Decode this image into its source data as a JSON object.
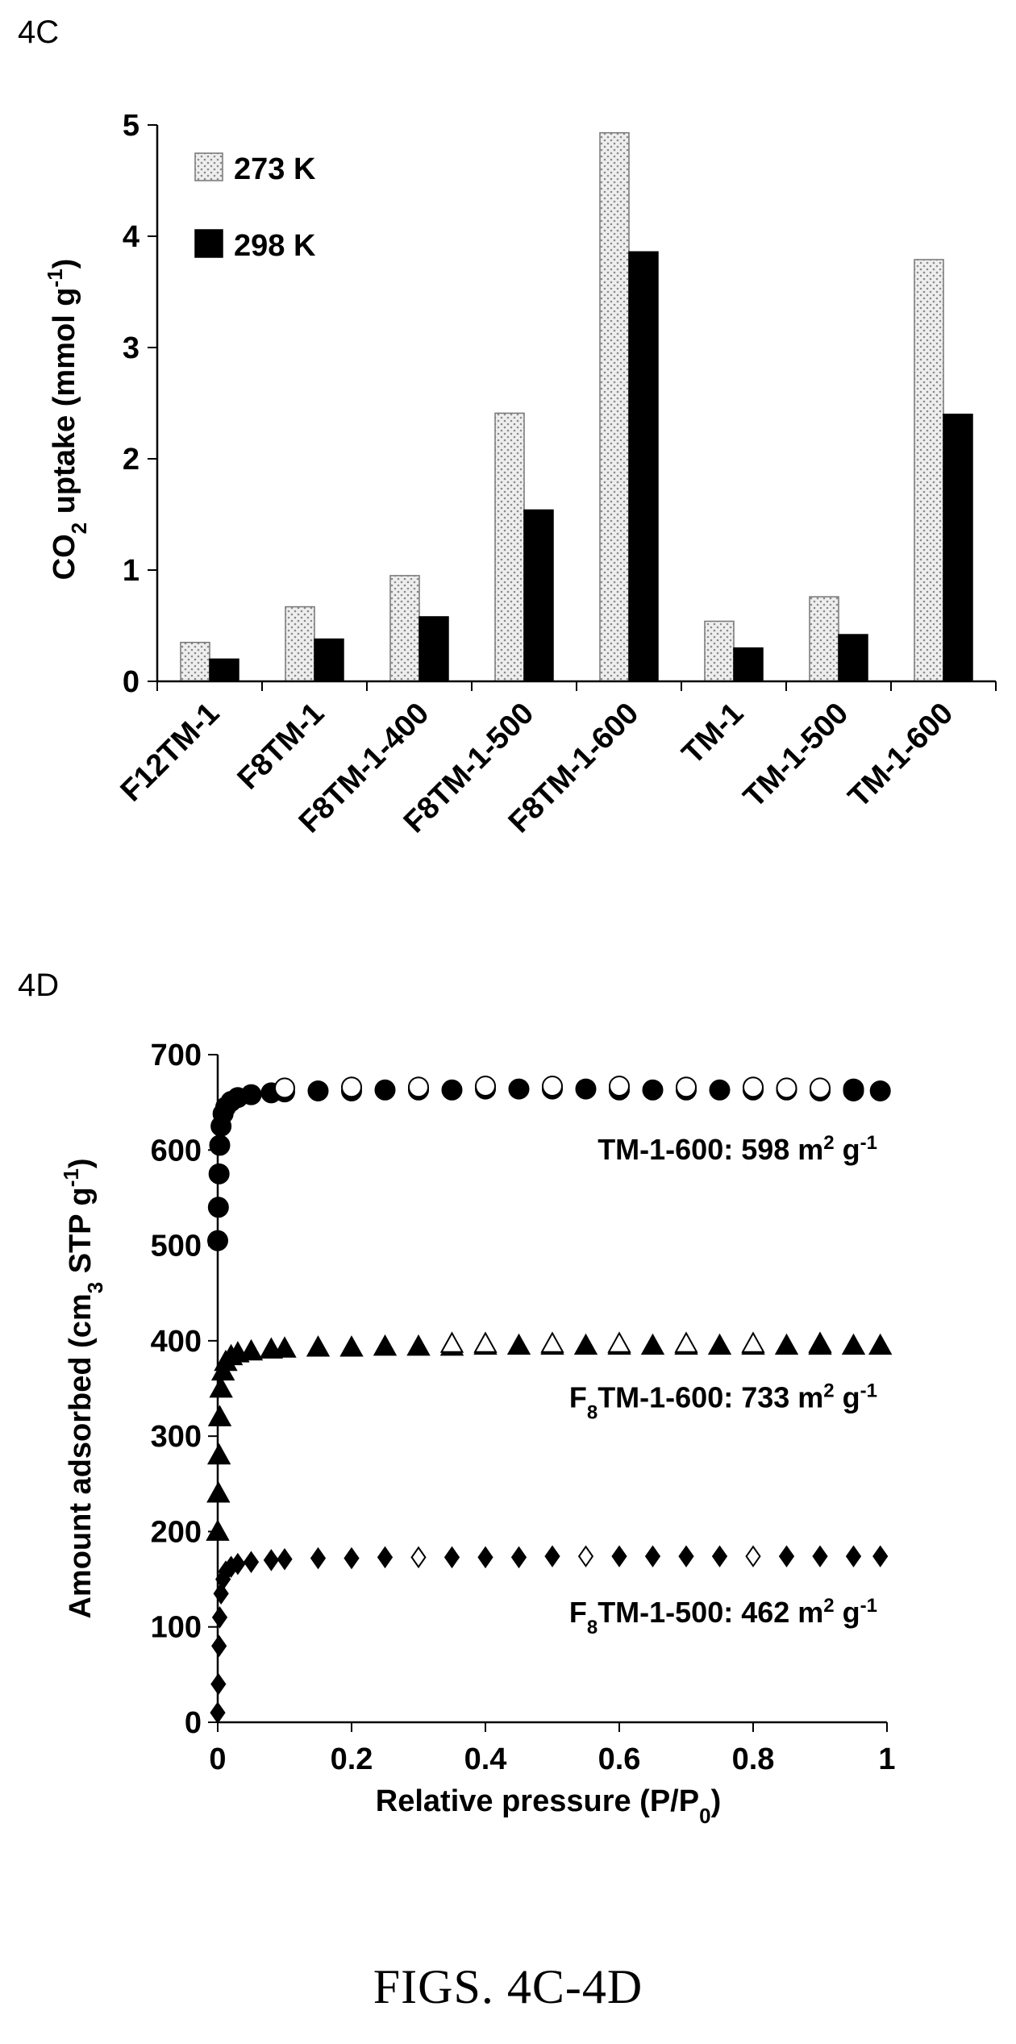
{
  "caption": "FIGS. 4C-4D",
  "chart_data": [
    {
      "panel": "4C",
      "type": "bar",
      "ylabel_main": "CO",
      "ylabel_sub": "2",
      "ylabel_rest": " uptake (mmol g",
      "ylabel_sup": "-1",
      "ylabel_end": ")",
      "ylim": [
        0,
        5
      ],
      "yticks": [
        "0",
        "1",
        "2",
        "3",
        "4",
        "5"
      ],
      "categories": [
        "F12TM-1",
        "F8TM-1",
        "F8TM-1-400",
        "F8TM-1-500",
        "F8TM-1-600",
        "TM-1",
        "TM-1-500",
        "TM-1-600"
      ],
      "series": [
        {
          "name": "273 K",
          "values": [
            0.35,
            0.67,
            0.95,
            2.41,
            4.93,
            0.54,
            0.76,
            3.79
          ],
          "color": "#e6e6e6",
          "pattern": "dotted"
        },
        {
          "name": "298 K",
          "values": [
            0.2,
            0.38,
            0.58,
            1.54,
            3.86,
            0.3,
            0.42,
            2.4
          ],
          "color": "#000000"
        }
      ],
      "legend": "top-left"
    },
    {
      "panel": "4D",
      "type": "scatter",
      "xlabel_main": "Relative pressure (P/P",
      "xlabel_sub": "0",
      "xlabel_end": ")",
      "ylabel_main": "Amount adsorbed (cm",
      "ylabel_sub": "3",
      "ylabel_rest": " STP g",
      "ylabel_sup": "-1",
      "ylabel_end": ")",
      "xlim": [
        0,
        1
      ],
      "ylim": [
        0,
        700
      ],
      "xticks": [
        "0",
        "0.2",
        "0.4",
        "0.6",
        "0.8",
        "1"
      ],
      "yticks": [
        "0",
        "100",
        "200",
        "300",
        "400",
        "500",
        "600",
        "700"
      ],
      "series": [
        {
          "marker": "circle",
          "color": "#000000",
          "annotation": {
            "pre": "TM-1-600: 598 m",
            "sup": "2",
            "mid": " g",
            "sup2": "-1"
          },
          "points": [
            [
              0.0,
              505
            ],
            [
              0.001,
              540
            ],
            [
              0.002,
              575
            ],
            [
              0.003,
              605
            ],
            [
              0.005,
              625
            ],
            [
              0.008,
              638
            ],
            [
              0.012,
              645
            ],
            [
              0.02,
              651
            ],
            [
              0.03,
              655
            ],
            [
              0.05,
              658
            ],
            [
              0.08,
              660
            ],
            [
              0.1,
              661
            ],
            [
              0.15,
              662
            ],
            [
              0.2,
              662
            ],
            [
              0.25,
              663
            ],
            [
              0.3,
              663
            ],
            [
              0.35,
              663
            ],
            [
              0.4,
              664
            ],
            [
              0.45,
              664
            ],
            [
              0.5,
              664
            ],
            [
              0.55,
              664
            ],
            [
              0.6,
              663
            ],
            [
              0.65,
              663
            ],
            [
              0.7,
              663
            ],
            [
              0.75,
              663
            ],
            [
              0.8,
              663
            ],
            [
              0.85,
              663
            ],
            [
              0.9,
              662
            ],
            [
              0.95,
              662
            ],
            [
              0.99,
              662
            ],
            [
              0.95,
              664
            ],
            [
              0.9,
              665
            ],
            [
              0.85,
              665
            ],
            [
              0.8,
              666
            ],
            [
              0.7,
              666
            ],
            [
              0.6,
              667
            ],
            [
              0.5,
              667
            ],
            [
              0.4,
              667
            ],
            [
              0.3,
              666
            ],
            [
              0.2,
              666
            ],
            [
              0.1,
              665
            ]
          ]
        },
        {
          "marker": "triangle",
          "color": "#000000",
          "annotation": {
            "pre": "F",
            "sub": "8",
            "mid": "TM-1-600: 733 m",
            "sup": "2",
            "mid2": " g",
            "sup2": "-1"
          },
          "points": [
            [
              0.0,
              200
            ],
            [
              0.001,
              240
            ],
            [
              0.002,
              280
            ],
            [
              0.003,
              320
            ],
            [
              0.005,
              350
            ],
            [
              0.008,
              368
            ],
            [
              0.012,
              378
            ],
            [
              0.02,
              384
            ],
            [
              0.03,
              387
            ],
            [
              0.05,
              389
            ],
            [
              0.08,
              391
            ],
            [
              0.1,
              392
            ],
            [
              0.15,
              393
            ],
            [
              0.2,
              393
            ],
            [
              0.25,
              394
            ],
            [
              0.3,
              394
            ],
            [
              0.35,
              394
            ],
            [
              0.4,
              395
            ],
            [
              0.45,
              395
            ],
            [
              0.5,
              395
            ],
            [
              0.55,
              395
            ],
            [
              0.6,
              395
            ],
            [
              0.65,
              395
            ],
            [
              0.7,
              395
            ],
            [
              0.75,
              395
            ],
            [
              0.8,
              395
            ],
            [
              0.85,
              395
            ],
            [
              0.9,
              395
            ],
            [
              0.95,
              395
            ],
            [
              0.99,
              395
            ],
            [
              0.9,
              397
            ],
            [
              0.8,
              397
            ],
            [
              0.7,
              397
            ],
            [
              0.6,
              397
            ],
            [
              0.5,
              397
            ],
            [
              0.4,
              397
            ],
            [
              0.35,
              397
            ]
          ]
        },
        {
          "marker": "diamond",
          "color": "#000000",
          "annotation": {
            "pre": "F",
            "sub": "8",
            "mid": "TM-1-500: 462 m",
            "sup": "2",
            "mid2": " g",
            "sup2": "-1"
          },
          "points": [
            [
              0.0,
              10
            ],
            [
              0.001,
              40
            ],
            [
              0.002,
              80
            ],
            [
              0.003,
              110
            ],
            [
              0.005,
              135
            ],
            [
              0.008,
              150
            ],
            [
              0.012,
              158
            ],
            [
              0.02,
              163
            ],
            [
              0.03,
              166
            ],
            [
              0.05,
              168
            ],
            [
              0.08,
              170
            ],
            [
              0.1,
              171
            ],
            [
              0.15,
              172
            ],
            [
              0.2,
              172
            ],
            [
              0.25,
              173
            ],
            [
              0.3,
              173
            ],
            [
              0.35,
              173
            ],
            [
              0.4,
              173
            ],
            [
              0.45,
              173
            ],
            [
              0.5,
              174
            ],
            [
              0.55,
              174
            ],
            [
              0.6,
              174
            ],
            [
              0.65,
              174
            ],
            [
              0.7,
              174
            ],
            [
              0.75,
              174
            ],
            [
              0.8,
              174
            ],
            [
              0.85,
              174
            ],
            [
              0.9,
              174
            ],
            [
              0.95,
              174
            ],
            [
              0.99,
              174
            ]
          ]
        }
      ]
    }
  ]
}
